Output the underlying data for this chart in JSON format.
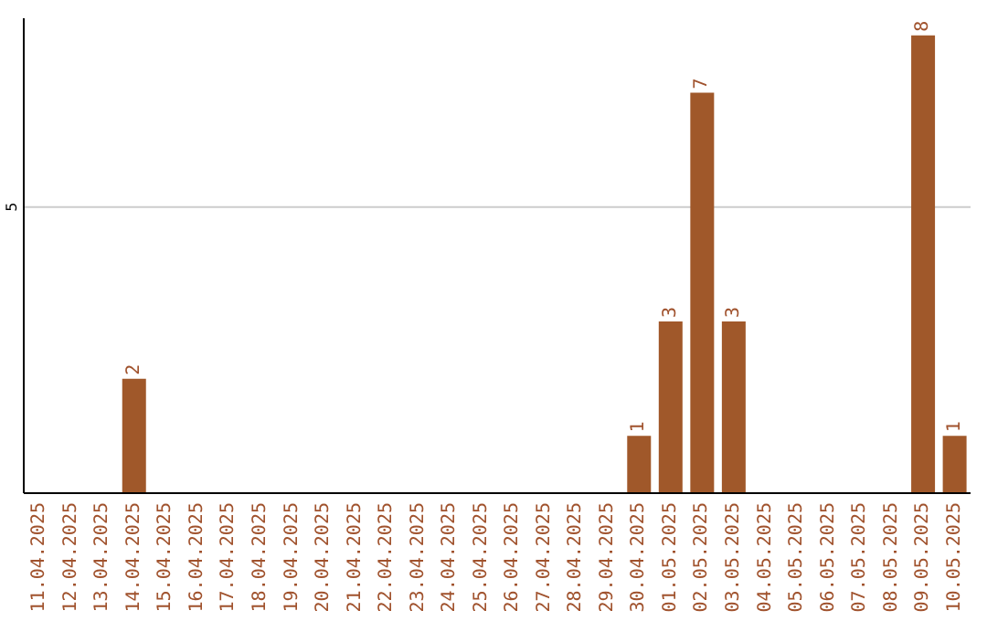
{
  "chart_data": {
    "type": "bar",
    "categories": [
      "11.04.2025",
      "12.04.2025",
      "13.04.2025",
      "14.04.2025",
      "15.04.2025",
      "16.04.2025",
      "17.04.2025",
      "18.04.2025",
      "19.04.2025",
      "20.04.2025",
      "21.04.2025",
      "22.04.2025",
      "23.04.2025",
      "24.04.2025",
      "25.04.2025",
      "26.04.2025",
      "27.04.2025",
      "28.04.2025",
      "29.04.2025",
      "30.04.2025",
      "01.05.2025",
      "02.05.2025",
      "03.05.2025",
      "04.05.2025",
      "05.05.2025",
      "06.05.2025",
      "07.05.2025",
      "08.05.2025",
      "09.05.2025",
      "10.05.2025"
    ],
    "values": [
      0,
      0,
      0,
      2,
      0,
      0,
      0,
      0,
      0,
      0,
      0,
      0,
      0,
      0,
      0,
      0,
      0,
      0,
      0,
      1,
      3,
      7,
      3,
      0,
      0,
      0,
      0,
      0,
      8,
      1
    ],
    "value_labels": [
      null,
      null,
      null,
      "2",
      null,
      null,
      null,
      null,
      null,
      null,
      null,
      null,
      null,
      null,
      null,
      null,
      null,
      null,
      null,
      "1",
      "3",
      "7",
      "3",
      null,
      null,
      null,
      null,
      null,
      "8",
      "1"
    ],
    "color": "#a0582a",
    "ylim": [
      0,
      8.3
    ],
    "yticks": [
      5
    ],
    "grid": "y"
  }
}
